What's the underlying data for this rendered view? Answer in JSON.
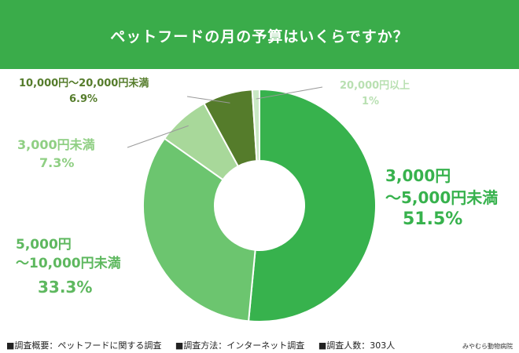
{
  "title": "ペットフードの月の予算はいくらですか？",
  "chart_data": {
    "type": "pie",
    "categories": [
      "3,000円〜5,000円未満",
      "5,000円〜10,000円未満",
      "3,000円未満",
      "10,000円〜20,000円未満",
      "20,000円以上"
    ],
    "values": [
      51.5,
      33.3,
      7.3,
      6.9,
      1
    ],
    "colors": [
      "#37b24d",
      "#6cc56f",
      "#a8d89a",
      "#557c2b",
      "#c9e8c4"
    ],
    "labels": [
      {
        "line1": "3,000円",
        "line2": "〜5,000円未満",
        "pct": "51.5%",
        "color": "#37b24d"
      },
      {
        "line1": "5,000円",
        "line2": "〜10,000円未満",
        "pct": "33.3%",
        "color": "#5eb85f"
      },
      {
        "line1": "3,000円未満",
        "line2": "",
        "pct": "7.3%",
        "color": "#8fcf83"
      },
      {
        "line1": "10,000円〜20,000円未満",
        "line2": "",
        "pct": "6.9%",
        "color": "#557c2b"
      },
      {
        "line1": "20,000円以上",
        "line2": "",
        "pct": "1%",
        "color": "#b9e0b2"
      }
    ]
  },
  "footer": {
    "item1": "■調査概要：ペットフードに関する調査",
    "item2": "■調査方法：インターネット調査",
    "item3": "■調査人数：303人"
  },
  "brand": "みやむら動物病院"
}
